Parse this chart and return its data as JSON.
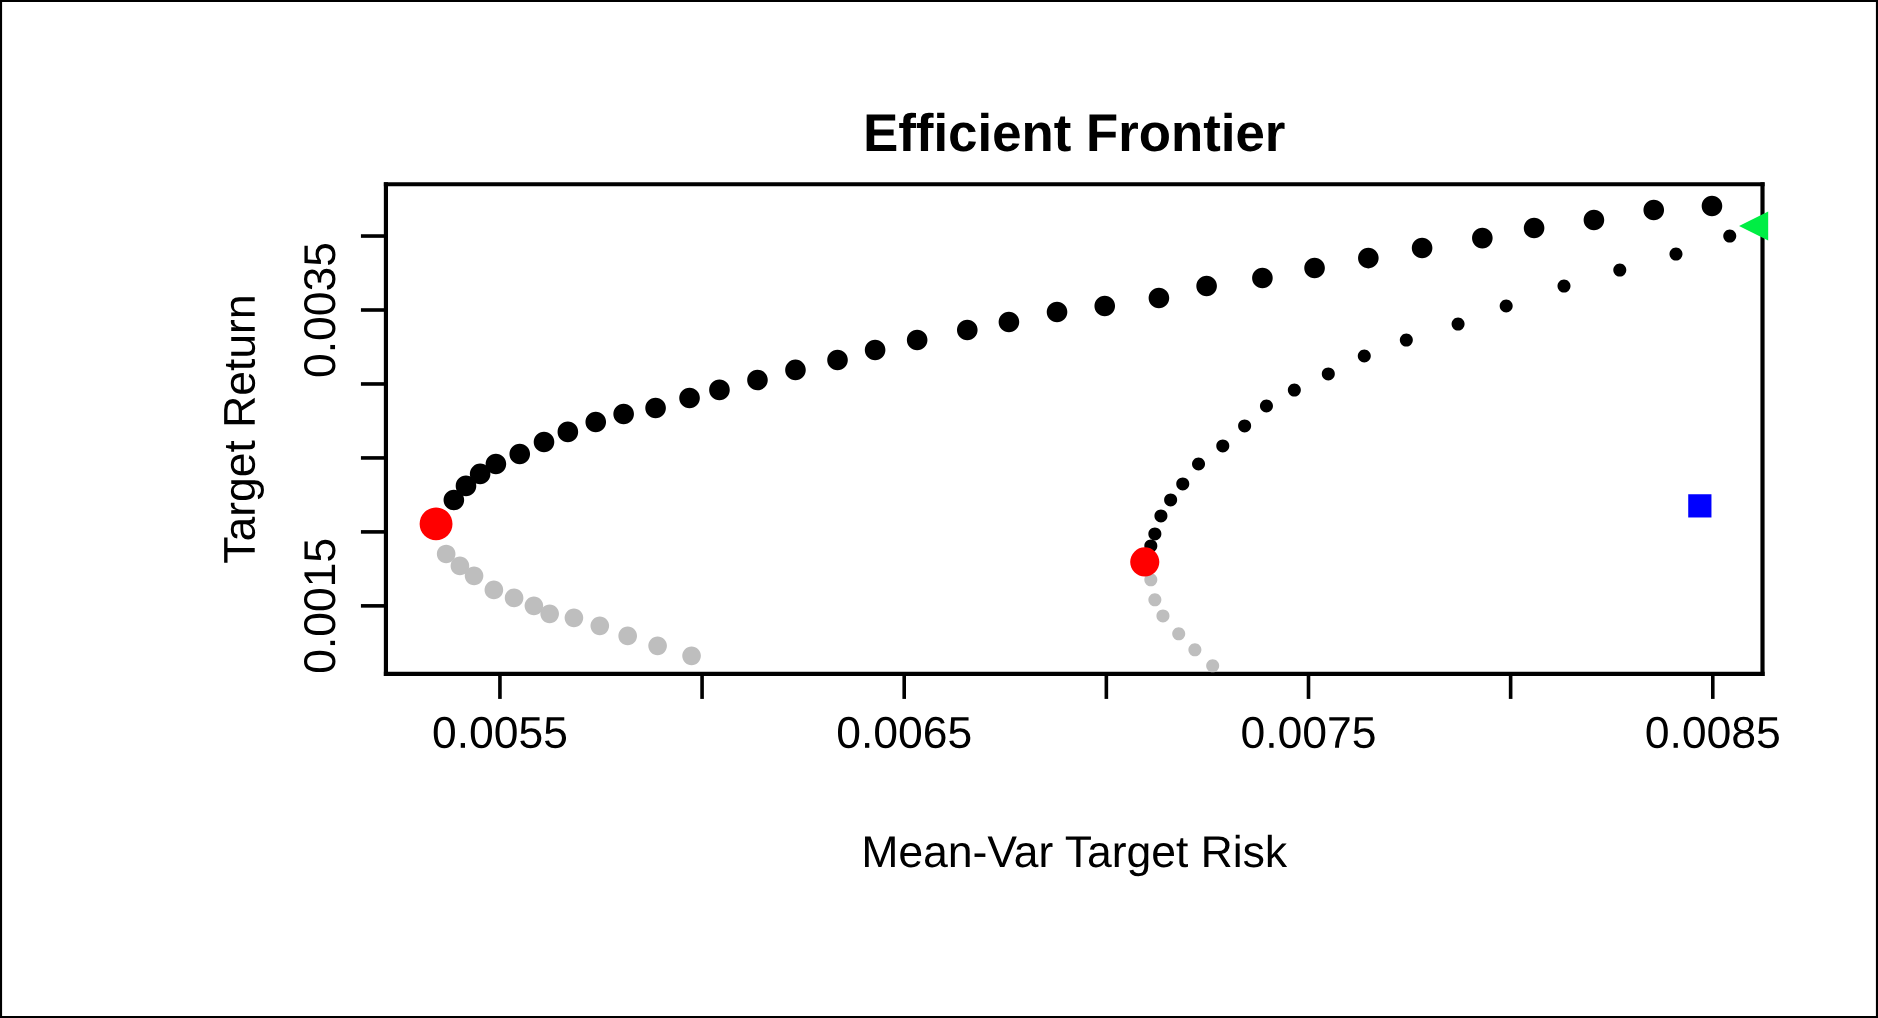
{
  "chart_data": {
    "type": "scatter",
    "title": "Efficient Frontier",
    "xlabel": "Mean-Var Target Risk",
    "ylabel": "Target Return",
    "xlim": [
      0.005218,
      0.008623
    ],
    "ylim": [
      0.00104,
      0.00435
    ],
    "xticks": [
      0.0055,
      {
        "value": 0.006,
        "label": null
      },
      0.0065,
      {
        "value": 0.007,
        "label": null
      },
      0.0075,
      {
        "value": 0.008,
        "label": null
      },
      0.0085
    ],
    "yticks": [
      0.0015,
      {
        "value": 0.002,
        "label": null
      },
      {
        "value": 0.0025,
        "label": null
      },
      {
        "value": 0.003,
        "label": null
      },
      0.0035,
      {
        "value": 0.004,
        "label": null
      }
    ],
    "grid": false,
    "legend": false,
    "marker": "circle",
    "series": [
      {
        "color": "#000000",
        "x": [
          0.005386,
          0.005416,
          0.005451,
          0.00549,
          0.005549,
          0.005609,
          0.005668,
          0.005737,
          0.005806,
          0.005885,
          0.005969,
          0.006043,
          0.006137,
          0.006231,
          0.006335,
          0.006428,
          0.006532,
          0.006656,
          0.006759,
          0.006878,
          0.006996,
          0.00713,
          0.007248,
          0.007386,
          0.007515,
          0.007648,
          0.007781,
          0.00793,
          0.008058,
          0.008206,
          0.008354,
          0.008498
        ],
        "values": [
          0.002216,
          0.002311,
          0.002392,
          0.002459,
          0.002527,
          0.002608,
          0.002676,
          0.002743,
          0.002797,
          0.002838,
          0.002905,
          0.00296,
          0.003027,
          0.003095,
          0.003162,
          0.00323,
          0.003297,
          0.003365,
          0.003419,
          0.003486,
          0.003527,
          0.003581,
          0.003662,
          0.003716,
          0.003784,
          0.003851,
          0.003919,
          0.003986,
          0.004054,
          0.004108,
          0.004176,
          0.004203
        ]
      },
      {
        "color": "#bebebe",
        "x": [
          0.005367,
          0.005401,
          0.005436,
          0.005485,
          0.005535,
          0.005584,
          0.005623,
          0.005683,
          0.005747,
          0.005816,
          0.00589,
          0.005974
        ],
        "values": [
          0.001851,
          0.00177,
          0.001703,
          0.001608,
          0.001554,
          0.0015,
          0.001446,
          0.001419,
          0.001365,
          0.001297,
          0.00123,
          0.001162
        ]
      },
      {
        "color": "#ff0000",
        "x": [
          0.005342
        ],
        "values": [
          0.002054
        ]
      },
      {
        "color": "#000000",
        "x": [
          0.00711,
          0.00712,
          0.007135,
          0.007159,
          0.007189,
          0.007228,
          0.007288,
          0.007342,
          0.007396,
          0.007465,
          0.007549,
          0.007638,
          0.007742,
          0.00787,
          0.007989,
          0.008132,
          0.00827,
          0.008409,
          0.008542
        ],
        "values": [
          0.001905,
          0.001986,
          0.002108,
          0.002216,
          0.002324,
          0.002459,
          0.002581,
          0.002716,
          0.002851,
          0.002959,
          0.003068,
          0.003189,
          0.003297,
          0.003405,
          0.003527,
          0.003662,
          0.00377,
          0.003878,
          0.004
        ]
      },
      {
        "color": "#bebebe",
        "x": [
          0.00711,
          0.00712,
          0.00714,
          0.007179,
          0.007219,
          0.007263
        ],
        "values": [
          0.001676,
          0.001541,
          0.001432,
          0.001311,
          0.001203,
          0.001095
        ]
      },
      {
        "color": "#ff0000",
        "x": [
          0.007095
        ],
        "values": [
          0.001797
        ]
      },
      {
        "color": "#00ee44",
        "marker": "triangle",
        "x": [
          0.008601
        ],
        "values": [
          0.004068
        ]
      },
      {
        "color": "#0000ff",
        "marker": "square",
        "x": [
          0.008468
        ],
        "values": [
          0.002176
        ]
      }
    ]
  }
}
